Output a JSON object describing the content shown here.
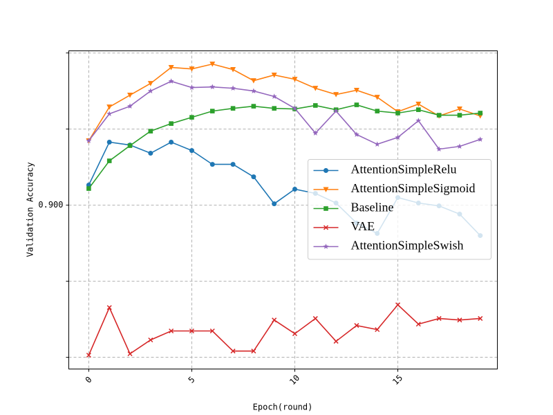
{
  "chart_data": {
    "type": "line",
    "x_label": "Epoch(round)",
    "y_label": "Validation Accuracy",
    "x": [
      0,
      1,
      2,
      3,
      4,
      5,
      6,
      7,
      8,
      9,
      10,
      11,
      12,
      13,
      14,
      15,
      16,
      17,
      18,
      19
    ],
    "xlim": [
      -0.97,
      19.83
    ],
    "xticks": [
      0,
      5,
      10,
      15
    ],
    "ylim": [
      0.7923,
      1.0014
    ],
    "yticks": [
      {
        "value": 0.8,
        "label": null
      },
      {
        "value": 0.85,
        "label": null
      },
      {
        "value": 0.9,
        "label": "0.900"
      },
      {
        "value": 0.95,
        "label": null
      },
      {
        "value": 1.0,
        "label": null
      }
    ],
    "grid": true,
    "legend": "center right",
    "series": [
      {
        "name": "AttentionSimpleRelu",
        "color": "#1f77b4",
        "marker": "circle",
        "values": [
          0.9132,
          0.9414,
          0.9395,
          0.9341,
          0.9414,
          0.9359,
          0.9268,
          0.9268,
          0.9186,
          0.9009,
          0.9105,
          0.9077,
          0.9014,
          0.8882,
          0.8814,
          0.905,
          0.9014,
          0.8995,
          0.8941,
          0.88
        ]
      },
      {
        "name": "AttentionSimpleSigmoid",
        "color": "#ff7f0e",
        "marker": "triangle-down",
        "values": [
          0.9423,
          0.9645,
          0.9723,
          0.98,
          0.9905,
          0.9895,
          0.9927,
          0.9891,
          0.9818,
          0.9855,
          0.9827,
          0.9768,
          0.9727,
          0.9755,
          0.9709,
          0.9614,
          0.9664,
          0.9586,
          0.9632,
          0.9586
        ]
      },
      {
        "name": "Baseline",
        "color": "#2ca02c",
        "marker": "square",
        "values": [
          0.9109,
          0.9291,
          0.9391,
          0.9486,
          0.9536,
          0.9577,
          0.9618,
          0.9636,
          0.965,
          0.9636,
          0.9632,
          0.9655,
          0.9627,
          0.9659,
          0.9618,
          0.9605,
          0.9627,
          0.9591,
          0.9591,
          0.9605
        ]
      },
      {
        "name": "VAE",
        "color": "#d62728",
        "marker": "x",
        "values": [
          0.8014,
          0.8327,
          0.8023,
          0.8114,
          0.8173,
          0.8173,
          0.8173,
          0.8041,
          0.8041,
          0.8245,
          0.8155,
          0.8255,
          0.8105,
          0.8209,
          0.8182,
          0.8345,
          0.8218,
          0.8255,
          0.8245,
          0.8255
        ]
      },
      {
        "name": "AttentionSimpleSwish",
        "color": "#9467bd",
        "marker": "star",
        "values": [
          0.9423,
          0.96,
          0.965,
          0.975,
          0.9814,
          0.9773,
          0.9777,
          0.9768,
          0.975,
          0.9714,
          0.9636,
          0.9473,
          0.9618,
          0.9464,
          0.94,
          0.9445,
          0.9555,
          0.9368,
          0.9386,
          0.9432
        ]
      }
    ]
  }
}
